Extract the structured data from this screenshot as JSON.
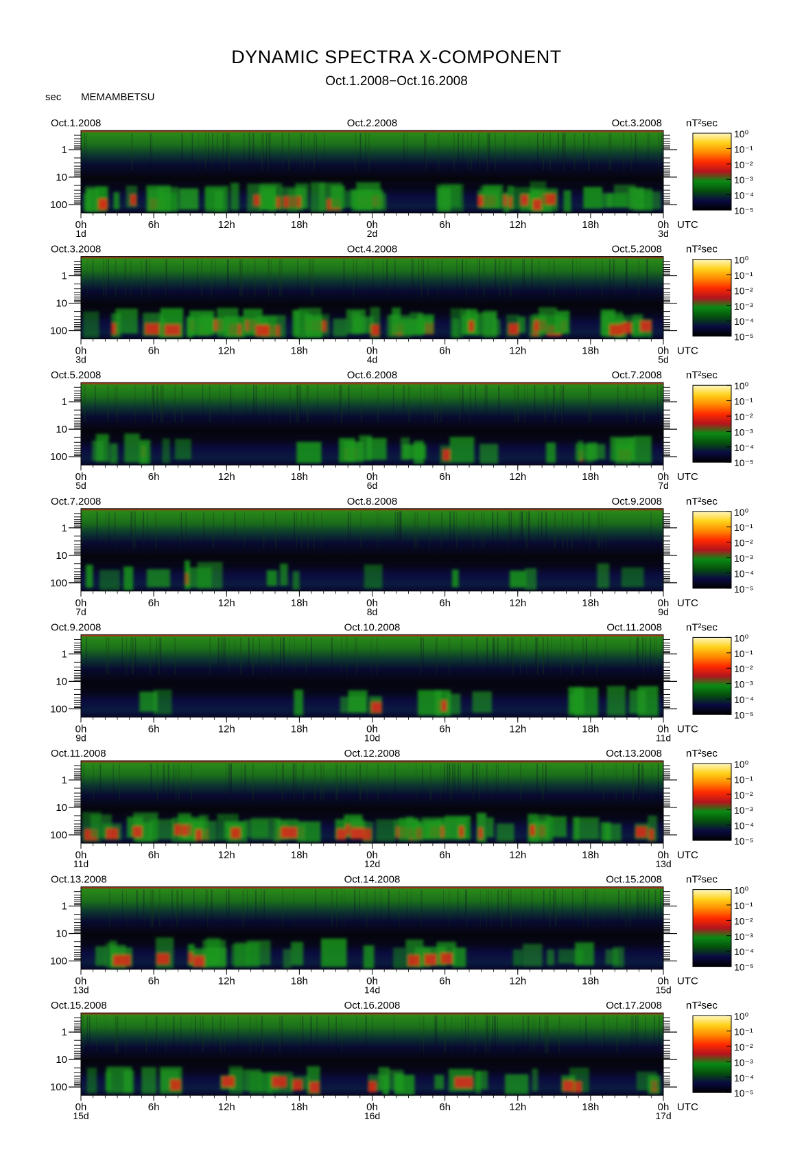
{
  "chart_data": {
    "type": "heatmap",
    "title": "DYNAMIC SPECTRA X-COMPONENT",
    "subtitle": "Oct.1.2008−Oct.16.2008",
    "ylabel": "sec",
    "station": "MEMAMBETSU",
    "y_scale": "log",
    "y_ticks": [
      "1",
      "10",
      "100"
    ],
    "x_ticks": [
      "0h",
      "6h",
      "12h",
      "18h",
      "0h",
      "6h",
      "12h",
      "18h",
      "0h"
    ],
    "x_unit": "UTC",
    "colorbar_unit": "nT²sec",
    "colorbar_ticks": [
      "10⁰",
      "10⁻¹",
      "10⁻²",
      "10⁻³",
      "10⁻⁴",
      "10⁻⁵"
    ],
    "colorbar_colors": [
      "#fff7c0",
      "#ffd21a",
      "#ff8a00",
      "#ff2a00",
      "#b4141e",
      "#0a8a14",
      "#05500c",
      "#0a0a42",
      "#000000"
    ],
    "panels": [
      {
        "left_date": "Oct.1.2008",
        "mid_date": "Oct.2.2008",
        "right_date": "Oct.3.2008",
        "day_labels": [
          "1d",
          "2d",
          "3d"
        ],
        "activity": "strong"
      },
      {
        "left_date": "Oct.3.2008",
        "mid_date": "Oct.4.2008",
        "right_date": "Oct.5.2008",
        "day_labels": [
          "3d",
          "4d",
          "5d"
        ],
        "activity": "strong"
      },
      {
        "left_date": "Oct.5.2008",
        "mid_date": "Oct.6.2008",
        "right_date": "Oct.7.2008",
        "day_labels": [
          "5d",
          "6d",
          "7d"
        ],
        "activity": "moderate"
      },
      {
        "left_date": "Oct.7.2008",
        "mid_date": "Oct.8.2008",
        "right_date": "Oct.9.2008",
        "day_labels": [
          "7d",
          "8d",
          "9d"
        ],
        "activity": "quiet"
      },
      {
        "left_date": "Oct.9.2008",
        "mid_date": "Oct.10.2008",
        "right_date": "Oct.11.2008",
        "day_labels": [
          "9d",
          "10d",
          "11d"
        ],
        "activity": "quiet"
      },
      {
        "left_date": "Oct.11.2008",
        "mid_date": "Oct.12.2008",
        "right_date": "Oct.13.2008",
        "day_labels": [
          "11d",
          "12d",
          "13d"
        ],
        "activity": "strong"
      },
      {
        "left_date": "Oct.13.2008",
        "mid_date": "Oct.14.2008",
        "right_date": "Oct.15.2008",
        "day_labels": [
          "13d",
          "14d",
          "15d"
        ],
        "activity": "moderate"
      },
      {
        "left_date": "Oct.15.2008",
        "mid_date": "Oct.16.2008",
        "right_date": "Oct.17.2008",
        "day_labels": [
          "15d",
          "16d",
          "17d"
        ],
        "activity": "moderate"
      }
    ]
  }
}
